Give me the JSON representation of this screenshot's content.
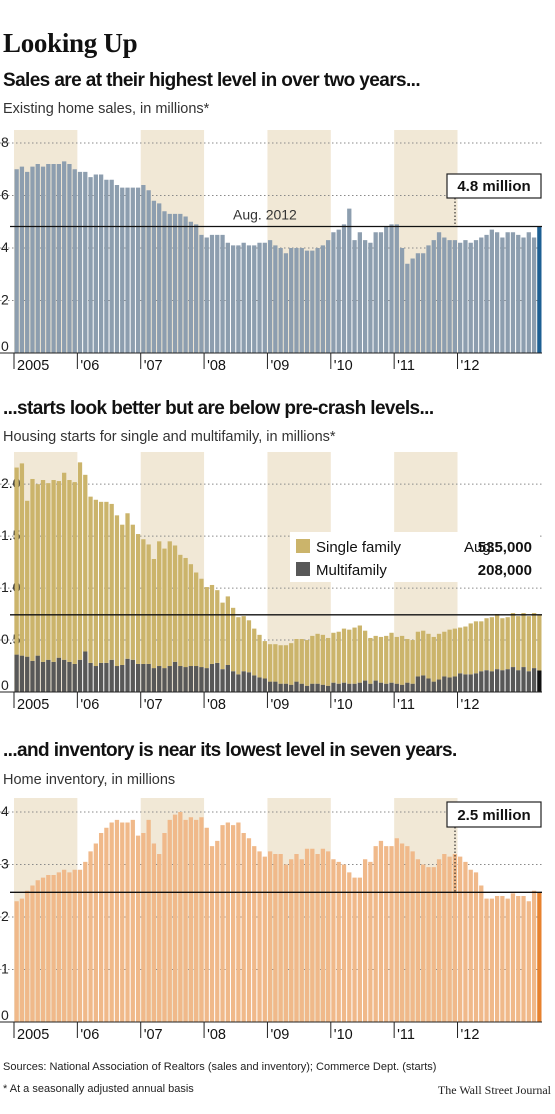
{
  "page_title": "Looking Up",
  "colors": {
    "band": "#f1e8d6",
    "sales_bar": "#8d9eaf",
    "sales_highlight": "#1d5f93",
    "single_family": "#cbb46b",
    "multifamily": "#585858",
    "multifamily_highlight": "#111111",
    "inventory_bar": "#f0b98a",
    "inventory_highlight": "#e7822f"
  },
  "footer": {
    "sources": "Sources: National Association of Realtors (sales and inventory); Commerce Dept. (starts)",
    "note": "* At a seasonally adjusted annual basis",
    "credit": "The Wall Street Journal"
  },
  "chart_data": [
    {
      "type": "bar",
      "title": "Sales are at their highest level in over two years...",
      "subtitle": "Existing home sales, in millions*",
      "x_tick_labels": [
        "2005",
        "'06",
        "'07",
        "'08",
        "'09",
        "'10",
        "'11",
        "'12"
      ],
      "y_ticks": [
        0,
        2,
        4,
        6,
        8
      ],
      "ylim": [
        0,
        8
      ],
      "x_start": "2005-01",
      "x_end": "2012-08",
      "reference_value": 4.82,
      "reference_label": "Aug. 2012",
      "callout": "4.8 million",
      "grid": true,
      "series": [
        {
          "values": [
            7.0,
            7.1,
            6.9,
            7.1,
            7.2,
            7.1,
            7.2,
            7.2,
            7.2,
            7.3,
            7.2,
            7.0,
            6.9,
            6.9,
            6.7,
            6.8,
            6.8,
            6.6,
            6.6,
            6.4,
            6.3,
            6.3,
            6.3,
            6.3,
            6.4,
            6.2,
            5.8,
            5.7,
            5.4,
            5.3,
            5.3,
            5.3,
            5.2,
            5.0,
            4.9,
            4.5,
            4.4,
            4.5,
            4.5,
            4.5,
            4.2,
            4.1,
            4.1,
            4.2,
            4.1,
            4.1,
            4.2,
            4.2,
            4.3,
            4.1,
            4.0,
            3.8,
            4.0,
            4.0,
            4.0,
            3.9,
            3.9,
            4.0,
            4.1,
            4.3,
            4.6,
            4.7,
            4.9,
            5.5,
            4.3,
            4.6,
            4.3,
            4.2,
            4.6,
            4.6,
            4.8,
            4.9,
            4.9,
            4.0,
            3.4,
            3.6,
            3.8,
            3.8,
            4.1,
            4.3,
            4.6,
            4.4,
            4.3,
            4.3,
            4.2,
            4.3,
            4.2,
            4.3,
            4.4,
            4.5,
            4.7,
            4.6,
            4.4,
            4.6,
            4.6,
            4.5,
            4.4,
            4.6,
            4.4,
            4.8
          ]
        }
      ]
    },
    {
      "type": "bar",
      "title": "...starts look better but are below pre-crash levels...",
      "subtitle": "Housing starts for single and multifamily, in millions*",
      "x_tick_labels": [
        "2005",
        "'06",
        "'07",
        "'08",
        "'09",
        "'10",
        "'11",
        "'12"
      ],
      "y_ticks": [
        0,
        0.5,
        1.0,
        1.5,
        2.0
      ],
      "y_tick_labels": [
        "0",
        "0.5",
        "1.0",
        "1.5",
        "2.0"
      ],
      "ylim": [
        0,
        2.3
      ],
      "x_start": "2005-01",
      "x_end": "2012-08",
      "reference_value": 0.743,
      "stacked": true,
      "grid": true,
      "legend": {
        "single_family_label": "Single family",
        "multifamily_label": "Multifamily",
        "aug_label": "Aug.:",
        "single_family_value": "535,000",
        "multifamily_value": "208,000"
      },
      "series": [
        {
          "name": "Single family",
          "values": [
            1.8,
            1.85,
            1.5,
            1.75,
            1.65,
            1.75,
            1.7,
            1.75,
            1.7,
            1.8,
            1.75,
            1.75,
            1.9,
            1.7,
            1.6,
            1.6,
            1.55,
            1.55,
            1.5,
            1.45,
            1.35,
            1.4,
            1.3,
            1.25,
            1.2,
            1.15,
            1.05,
            1.2,
            1.15,
            1.2,
            1.12,
            1.07,
            1.05,
            0.98,
            0.9,
            0.85,
            0.78,
            0.76,
            0.7,
            0.64,
            0.66,
            0.61,
            0.55,
            0.53,
            0.5,
            0.45,
            0.41,
            0.36,
            0.36,
            0.36,
            0.37,
            0.37,
            0.4,
            0.41,
            0.43,
            0.44,
            0.46,
            0.48,
            0.48,
            0.46,
            0.48,
            0.5,
            0.52,
            0.52,
            0.54,
            0.55,
            0.48,
            0.44,
            0.43,
            0.44,
            0.46,
            0.48,
            0.45,
            0.47,
            0.42,
            0.42,
            0.43,
            0.43,
            0.43,
            0.43,
            0.44,
            0.43,
            0.46,
            0.46,
            0.44,
            0.46,
            0.49,
            0.5,
            0.48,
            0.5,
            0.52,
            0.53,
            0.5,
            0.5,
            0.52,
            0.52,
            0.52,
            0.53,
            0.53,
            0.535
          ]
        },
        {
          "name": "Multifamily",
          "values": [
            0.36,
            0.35,
            0.34,
            0.3,
            0.35,
            0.29,
            0.31,
            0.29,
            0.33,
            0.31,
            0.29,
            0.27,
            0.31,
            0.39,
            0.28,
            0.25,
            0.28,
            0.28,
            0.31,
            0.25,
            0.26,
            0.32,
            0.31,
            0.27,
            0.27,
            0.27,
            0.23,
            0.25,
            0.23,
            0.25,
            0.29,
            0.25,
            0.24,
            0.25,
            0.25,
            0.24,
            0.23,
            0.27,
            0.28,
            0.22,
            0.26,
            0.2,
            0.17,
            0.2,
            0.19,
            0.16,
            0.14,
            0.13,
            0.1,
            0.1,
            0.08,
            0.08,
            0.07,
            0.1,
            0.08,
            0.06,
            0.08,
            0.08,
            0.07,
            0.06,
            0.09,
            0.08,
            0.09,
            0.08,
            0.08,
            0.09,
            0.11,
            0.08,
            0.11,
            0.09,
            0.08,
            0.09,
            0.08,
            0.07,
            0.09,
            0.08,
            0.15,
            0.16,
            0.13,
            0.1,
            0.12,
            0.15,
            0.14,
            0.15,
            0.18,
            0.17,
            0.17,
            0.18,
            0.2,
            0.21,
            0.2,
            0.22,
            0.21,
            0.22,
            0.24,
            0.21,
            0.24,
            0.2,
            0.23,
            0.208
          ]
        }
      ]
    },
    {
      "type": "bar",
      "title": "...and inventory is near its lowest level in seven years.",
      "subtitle": "Home inventory, in millions",
      "x_tick_labels": [
        "2005",
        "'06",
        "'07",
        "'08",
        "'09",
        "'10",
        "'11",
        "'12"
      ],
      "y_ticks": [
        0,
        1,
        2,
        3,
        4
      ],
      "ylim": [
        0,
        4
      ],
      "x_start": "2005-01",
      "x_end": "2012-08",
      "reference_value": 2.47,
      "callout": "2.5 million",
      "grid": true,
      "series": [
        {
          "values": [
            2.3,
            2.35,
            2.5,
            2.6,
            2.7,
            2.75,
            2.8,
            2.8,
            2.85,
            2.9,
            2.85,
            2.9,
            2.9,
            3.05,
            3.25,
            3.4,
            3.6,
            3.7,
            3.8,
            3.85,
            3.8,
            3.8,
            3.85,
            3.55,
            3.6,
            3.85,
            3.4,
            3.2,
            3.6,
            3.85,
            3.95,
            4.0,
            3.85,
            3.9,
            3.85,
            3.9,
            3.7,
            3.35,
            3.45,
            3.75,
            3.8,
            3.75,
            3.8,
            3.6,
            3.5,
            3.35,
            3.25,
            3.15,
            3.25,
            3.2,
            3.2,
            3.0,
            3.1,
            3.2,
            3.1,
            3.3,
            3.3,
            3.2,
            3.3,
            3.25,
            3.1,
            3.05,
            3.0,
            2.85,
            2.75,
            2.75,
            3.1,
            3.05,
            3.35,
            3.45,
            3.35,
            3.35,
            3.5,
            3.4,
            3.35,
            3.25,
            3.1,
            3.0,
            2.95,
            2.95,
            3.1,
            3.2,
            3.15,
            3.2,
            3.15,
            3.05,
            2.9,
            2.85,
            2.6,
            2.35,
            2.35,
            2.4,
            2.4,
            2.35,
            2.45,
            2.4,
            2.4,
            2.3,
            2.5,
            2.47
          ]
        }
      ]
    }
  ]
}
